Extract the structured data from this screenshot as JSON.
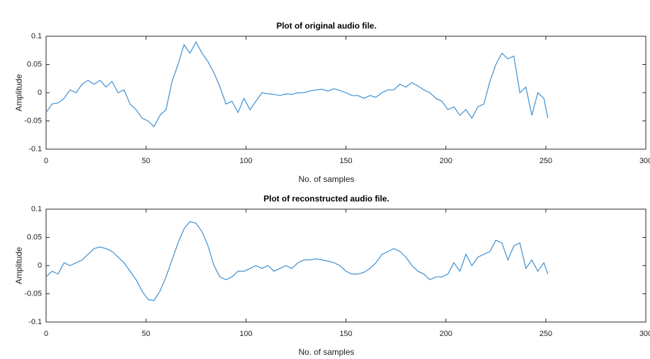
{
  "chart_data": [
    {
      "type": "line",
      "title": "Plot of original audio file.",
      "xlabel": "No. of samples",
      "ylabel": "Amplitude",
      "xlim": [
        0,
        300
      ],
      "xticks": [
        0,
        50,
        100,
        150,
        200,
        250,
        300
      ],
      "ylim": [
        -0.1,
        0.1
      ],
      "yticks": [
        -0.1,
        -0.05,
        0,
        0.05,
        0.1
      ],
      "color": "#3d8fd1",
      "x": [
        0,
        3,
        6,
        9,
        12,
        15,
        18,
        21,
        24,
        27,
        30,
        33,
        36,
        39,
        42,
        45,
        48,
        51,
        54,
        57,
        60,
        63,
        66,
        69,
        72,
        75,
        78,
        81,
        84,
        87,
        90,
        93,
        96,
        99,
        102,
        105,
        108,
        111,
        114,
        117,
        120,
        123,
        126,
        129,
        132,
        135,
        138,
        141,
        144,
        147,
        150,
        153,
        156,
        159,
        162,
        165,
        168,
        171,
        174,
        177,
        180,
        183,
        186,
        189,
        192,
        195,
        198,
        201,
        204,
        207,
        210,
        213,
        216,
        219,
        222,
        225,
        228,
        231,
        234,
        237,
        240,
        243,
        246,
        249,
        251
      ],
      "values": [
        -0.035,
        -0.02,
        -0.018,
        -0.01,
        0.005,
        0.0,
        0.015,
        0.022,
        0.015,
        0.022,
        0.01,
        0.02,
        0.0,
        0.005,
        -0.02,
        -0.03,
        -0.045,
        -0.05,
        -0.06,
        -0.04,
        -0.03,
        0.02,
        0.05,
        0.085,
        0.07,
        0.09,
        0.07,
        0.055,
        0.035,
        0.01,
        -0.02,
        -0.015,
        -0.035,
        -0.01,
        -0.03,
        -0.015,
        0.0,
        -0.002,
        -0.003,
        -0.005,
        -0.002,
        -0.003,
        0.0,
        0.0,
        0.003,
        0.005,
        0.006,
        0.003,
        0.007,
        0.004,
        0.0,
        -0.005,
        -0.005,
        -0.01,
        -0.005,
        -0.008,
        0.0,
        0.005,
        0.005,
        0.015,
        0.01,
        0.018,
        0.012,
        0.005,
        0.0,
        -0.01,
        -0.015,
        -0.03,
        -0.025,
        -0.04,
        -0.03,
        -0.045,
        -0.025,
        -0.02,
        0.02,
        0.05,
        0.07,
        0.06,
        0.065,
        0.0,
        0.01,
        -0.04,
        0.0,
        -0.01,
        -0.045
      ]
    },
    {
      "type": "line",
      "title": "Plot of reconstructed audio file.",
      "xlabel": "No. of samples",
      "ylabel": "Amplitude",
      "xlim": [
        0,
        300
      ],
      "xticks": [
        0,
        50,
        100,
        150,
        200,
        250,
        300
      ],
      "ylim": [
        -0.1,
        0.1
      ],
      "yticks": [
        -0.1,
        -0.05,
        0,
        0.05,
        0.1
      ],
      "color": "#3d8fd1",
      "x": [
        0,
        3,
        6,
        9,
        12,
        15,
        18,
        21,
        24,
        27,
        30,
        33,
        36,
        39,
        42,
        45,
        48,
        51,
        54,
        57,
        60,
        63,
        66,
        69,
        72,
        75,
        78,
        81,
        84,
        87,
        90,
        93,
        96,
        99,
        102,
        105,
        108,
        111,
        114,
        117,
        120,
        123,
        126,
        129,
        132,
        135,
        138,
        141,
        144,
        147,
        150,
        153,
        156,
        159,
        162,
        165,
        168,
        171,
        174,
        177,
        180,
        183,
        186,
        189,
        192,
        195,
        198,
        201,
        204,
        207,
        210,
        213,
        216,
        219,
        222,
        225,
        228,
        231,
        234,
        237,
        240,
        243,
        246,
        249,
        251
      ],
      "values": [
        -0.02,
        -0.01,
        -0.015,
        0.005,
        0.0,
        0.005,
        0.01,
        0.02,
        0.03,
        0.033,
        0.03,
        0.025,
        0.015,
        0.005,
        -0.01,
        -0.025,
        -0.045,
        -0.06,
        -0.062,
        -0.045,
        -0.02,
        0.01,
        0.04,
        0.065,
        0.078,
        0.075,
        0.06,
        0.035,
        0.0,
        -0.02,
        -0.025,
        -0.02,
        -0.01,
        -0.01,
        -0.005,
        0.0,
        -0.005,
        0.0,
        -0.01,
        -0.005,
        0.0,
        -0.005,
        0.005,
        0.01,
        0.01,
        0.012,
        0.01,
        0.008,
        0.005,
        0.0,
        -0.01,
        -0.015,
        -0.015,
        -0.012,
        -0.005,
        0.005,
        0.02,
        0.025,
        0.03,
        0.025,
        0.015,
        0.0,
        -0.01,
        -0.015,
        -0.025,
        -0.02,
        -0.02,
        -0.015,
        0.005,
        -0.01,
        0.02,
        0.0,
        0.015,
        0.02,
        0.025,
        0.045,
        0.04,
        0.01,
        0.035,
        0.04,
        -0.005,
        0.01,
        -0.01,
        0.005,
        -0.015
      ]
    }
  ]
}
